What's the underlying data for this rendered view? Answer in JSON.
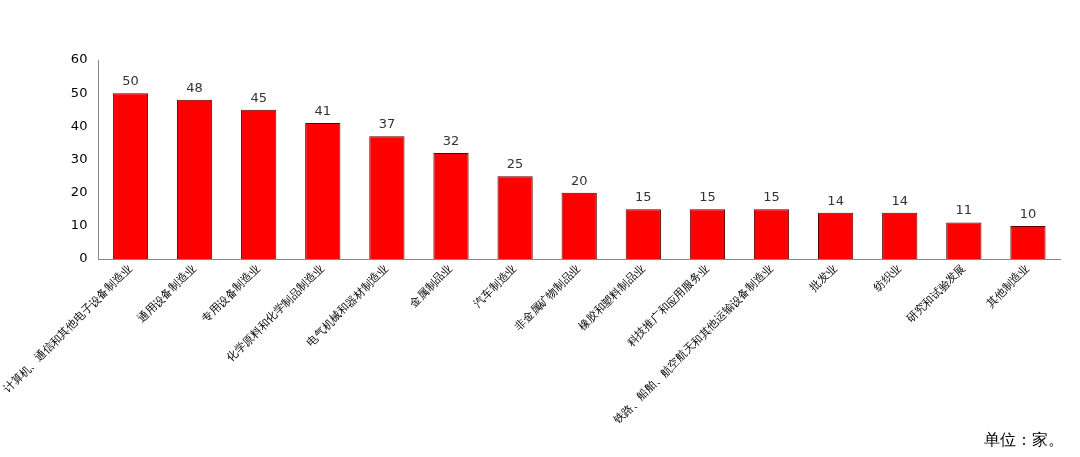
{
  "chart_data": {
    "type": "bar",
    "categories": [
      "计算机、通信和其他电子设备制造业",
      "通用设备制造业",
      "专用设备制造业",
      "化学原料和化学制品制造业",
      "电气机械和器材制造业",
      "金属制品业",
      "汽车制造业",
      "非金属矿物制品业",
      "橡胶和塑料制品业",
      "科技推广和应用服务业",
      "铁路、船舶、航空航天和其他运输设备制造业",
      "批发业",
      "纺织业",
      "研究和试验发展",
      "其他制造业"
    ],
    "values": [
      50,
      48,
      45,
      41,
      37,
      32,
      25,
      20,
      15,
      15,
      15,
      14,
      14,
      11,
      10
    ],
    "color": "#ff0000",
    "ylim": [
      0,
      60
    ],
    "yticks": [
      0,
      10,
      20,
      30,
      40,
      50,
      60
    ],
    "grid": false,
    "legend": false,
    "data_labels": true,
    "annotations": [
      "单位：家。"
    ]
  }
}
